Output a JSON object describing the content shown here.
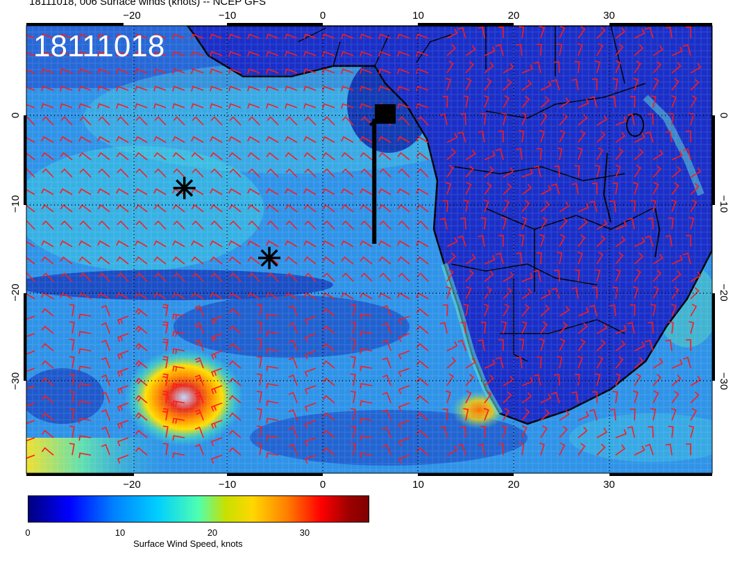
{
  "title": "18111018, 006 Surface winds (knots) -- NCEP GFS",
  "stamp": "18111018",
  "axes": {
    "lon_labels": [
      "−20",
      "−10",
      "0",
      "10",
      "20",
      "30"
    ],
    "lat_labels": [
      "0",
      "−10",
      "−20",
      "−30"
    ]
  },
  "colorbar": {
    "label": "Surface Wind Speed, knots",
    "ticks": [
      "0",
      "10",
      "20",
      "30"
    ],
    "range": [
      0,
      37
    ]
  },
  "markers": [
    {
      "type": "storm-asterisk",
      "lon": -14.5,
      "lat": -8.2
    },
    {
      "type": "storm-asterisk",
      "lon": -5.6,
      "lat": -16.1
    }
  ],
  "track": {
    "lon": 5.4,
    "lat_start": 0,
    "lat_end": -14.5
  },
  "colors": {
    "ocean_low": "#0a1fa8",
    "ocean_mid": "#2f93e8",
    "ocean_high": "#49d4d8",
    "land": "#1a2fc8",
    "barbs": "#ff1a1a",
    "coast": "#000000",
    "cyclone_core": "#e83020"
  },
  "icons": {
    "storm": "asterisk-icon",
    "start": "filled-square-icon"
  }
}
